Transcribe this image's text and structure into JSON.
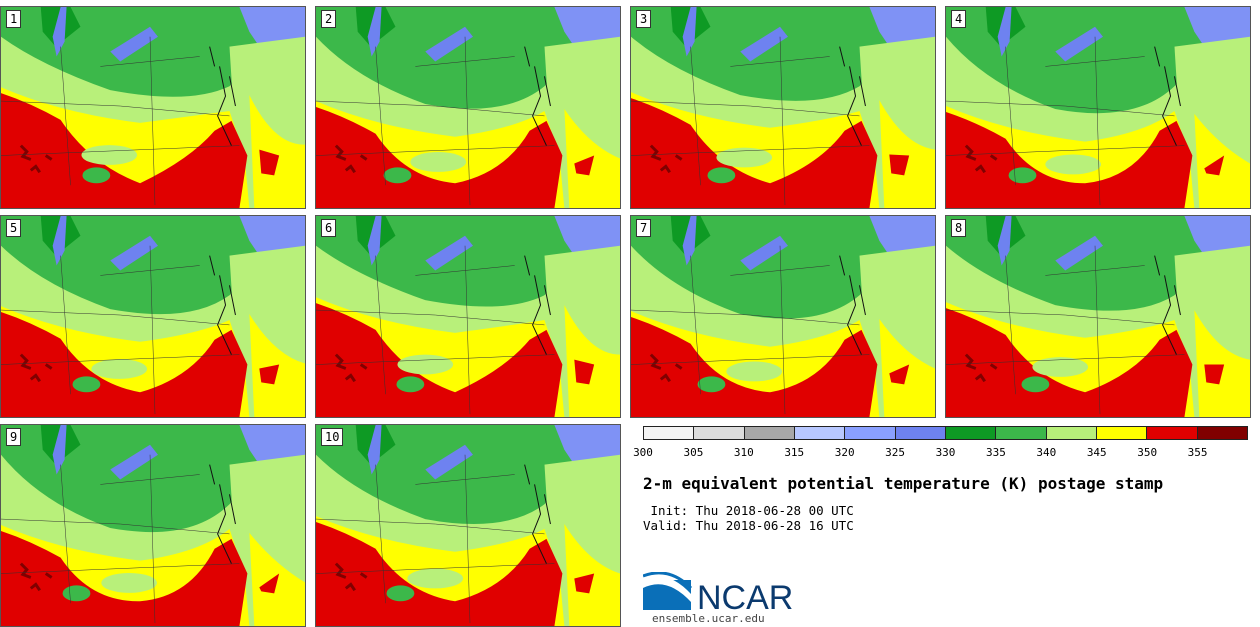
{
  "title": "2-m equivalent potential temperature (K) postage stamp",
  "init": " Init: Thu 2018-06-28 00 UTC",
  "valid": "Valid: Thu 2018-06-28 16 UTC",
  "logo_text": "NCAR",
  "url": "ensemble.ucar.edu",
  "members": [
    "1",
    "2",
    "3",
    "4",
    "5",
    "6",
    "7",
    "8",
    "9",
    "10"
  ],
  "colorbar": {
    "ticks": [
      "300",
      "305",
      "310",
      "315",
      "320",
      "325",
      "330",
      "335",
      "340",
      "345",
      "350",
      "355"
    ],
    "colors": [
      "#f4f4f4",
      "#dcdcdc",
      "#a8a8a8",
      "#b8c8ff",
      "#8aa0ff",
      "#6e82f0",
      "#0e9a24",
      "#3cb84a",
      "#b8f07a",
      "#ffff00",
      "#e00000",
      "#800000"
    ]
  }
}
